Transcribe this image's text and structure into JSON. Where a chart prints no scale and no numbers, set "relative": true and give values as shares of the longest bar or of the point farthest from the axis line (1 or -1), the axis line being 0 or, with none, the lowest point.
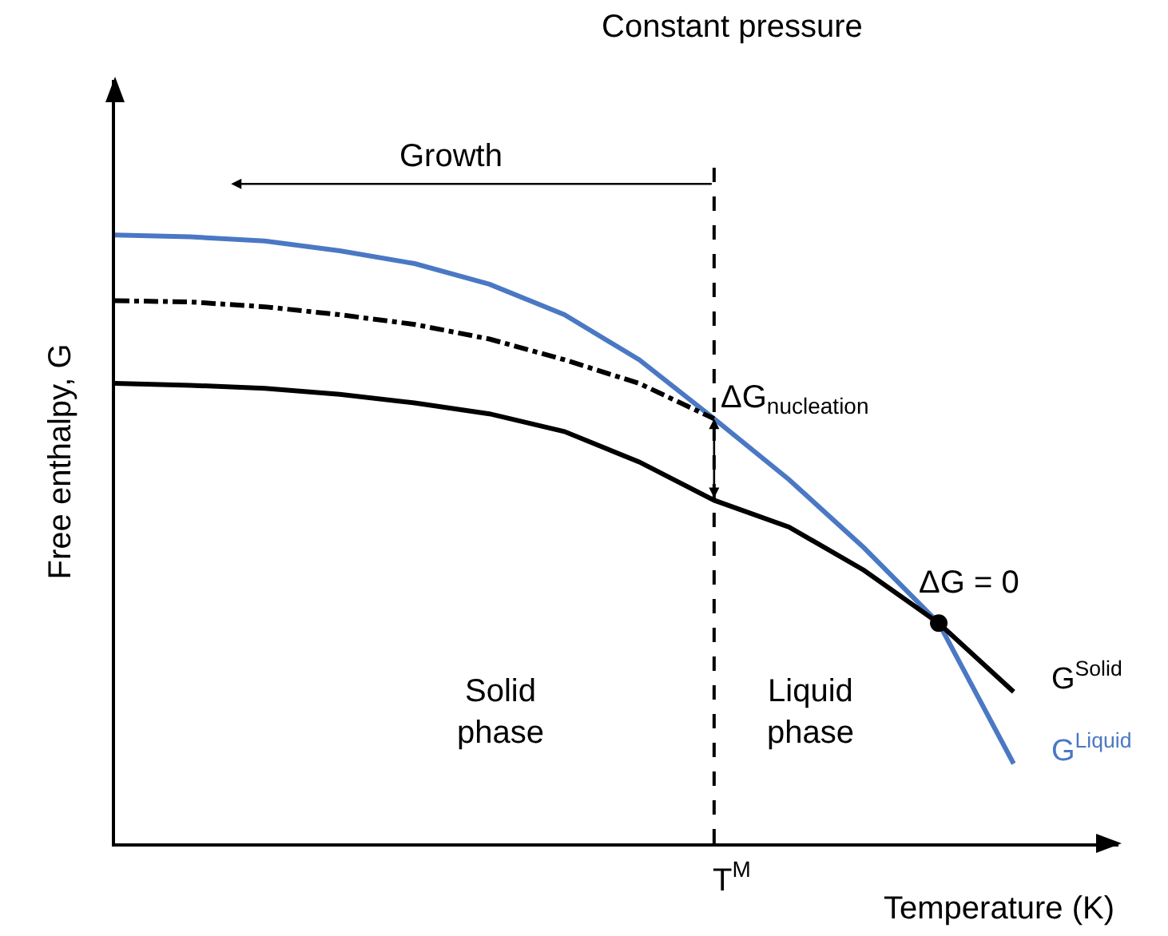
{
  "chart_data": {
    "type": "line",
    "relative": true,
    "title": "Constant pressure",
    "xlabel": "Temperature (K)",
    "ylabel": "Free enthalpy, G",
    "grid": false,
    "legend": false,
    "marker": "none",
    "categories": [
      null,
      null,
      null,
      null,
      null,
      null,
      null,
      null,
      null,
      null,
      null,
      null,
      null
    ],
    "series": [
      {
        "name": "G$^{Liquid}$",
        "color": "#4a78c4",
        "values": [
          1,
          0.997,
          0.99,
          0.974,
          0.953,
          0.919,
          0.869,
          0.795,
          0.698,
          0.598,
          0.486,
          0.362,
          0.131
        ]
      },
      {
        "name": "G$^{Solid}$",
        "color": "#000000",
        "values": [
          0.756,
          0.753,
          0.748,
          0.738,
          0.724,
          0.706,
          0.677,
          0.627,
          0.564,
          0.52,
          0.449,
          0.362,
          0.249
        ]
      },
      {
        "color": "#000000",
        "line_style": "dashdot",
        "values": [
          0.892,
          0.89,
          0.882,
          0.869,
          0.853,
          0.829,
          0.795,
          0.756,
          0.698,
          null,
          null,
          null,
          null
        ]
      }
    ],
    "annotations": [
      "Growth",
      "ΔG$_{nucleation}$",
      "ΔG = 0",
      "Solid\nphase",
      "Liquid\nphase",
      "T$^{M}$"
    ]
  }
}
